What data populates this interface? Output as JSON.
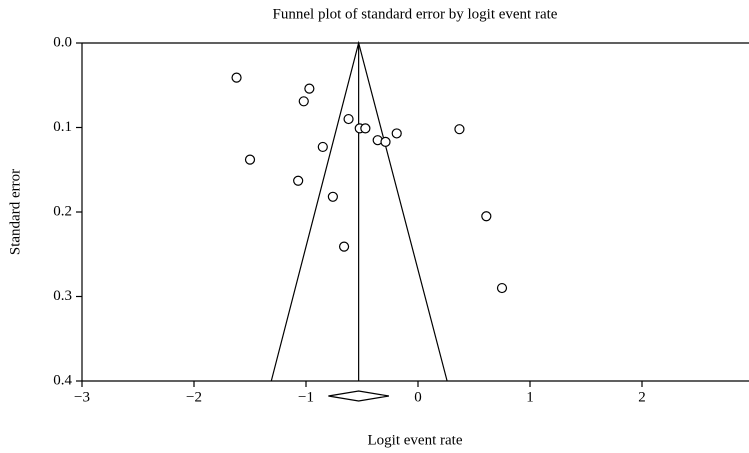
{
  "chart_data": {
    "type": "scatter",
    "title": "Funnel plot of standard error by logit event rate",
    "x_label": "Logit event rate",
    "y_label": "Standard error",
    "x": [
      -1.62,
      -0.97,
      -1.02,
      -0.62,
      -0.52,
      -0.47,
      0.37,
      -0.19,
      -0.36,
      -0.29,
      -0.85,
      -1.5,
      -1.07,
      -0.76,
      0.61,
      -0.66,
      0.75
    ],
    "values": [
      0.041,
      0.054,
      0.069,
      0.09,
      0.101,
      0.101,
      0.102,
      0.107,
      0.115,
      0.117,
      0.123,
      0.138,
      0.163,
      0.182,
      0.205,
      0.241,
      0.29
    ],
    "funnel": {
      "x": [
        -1.31,
        -0.53,
        0.26
      ],
      "y": [
        0.4,
        0,
        0.4
      ]
    },
    "summary": {
      "estimate": -0.53,
      "lower": -0.8,
      "upper": -0.26
    },
    "xlim": [
      -3,
      3
    ],
    "ylim": [
      0,
      0.4
    ],
    "y_inverted": true,
    "xticks": [
      {
        "value": -3,
        "label": "−3"
      },
      {
        "value": -2,
        "label": "−2"
      },
      {
        "value": -1,
        "label": "−1"
      },
      0,
      1,
      2,
      3
    ],
    "yticks": [
      {
        "value": 0,
        "label": "0.0"
      },
      {
        "value": 0.1,
        "label": "0.1"
      },
      {
        "value": 0.2,
        "label": "0.2"
      },
      {
        "value": 0.3,
        "label": "0.3"
      },
      {
        "value": 0.4,
        "label": "0.4"
      }
    ],
    "color": "#000000"
  }
}
